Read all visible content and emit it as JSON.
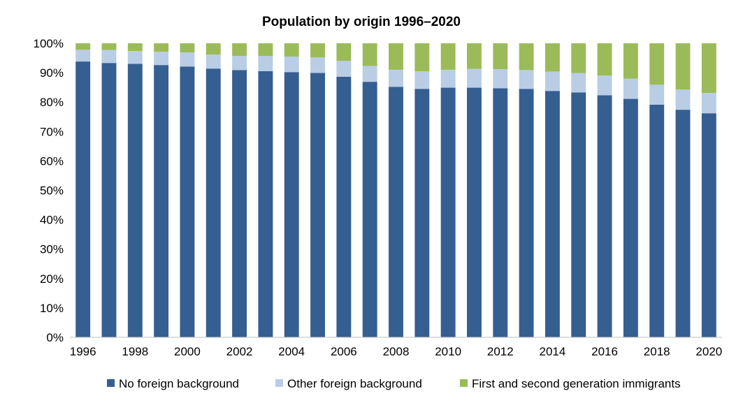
{
  "chart_data": {
    "type": "bar",
    "stacked": true,
    "title": "Population by origin 1996–2020",
    "xlabel": "",
    "ylabel": "",
    "ylim": [
      0,
      100
    ],
    "y_ticks": [
      "0%",
      "10%",
      "20%",
      "30%",
      "40%",
      "50%",
      "60%",
      "70%",
      "80%",
      "90%",
      "100%"
    ],
    "x_tick_labels": [
      "1996",
      "1998",
      "2000",
      "2002",
      "2004",
      "2006",
      "2008",
      "2010",
      "2012",
      "2014",
      "2016",
      "2018",
      "2020"
    ],
    "categories": [
      "1996",
      "1997",
      "1998",
      "1999",
      "2000",
      "2001",
      "2002",
      "2003",
      "2004",
      "2005",
      "2006",
      "2007",
      "2008",
      "2009",
      "2010",
      "2011",
      "2012",
      "2013",
      "2014",
      "2015",
      "2016",
      "2017",
      "2018",
      "2019",
      "2020"
    ],
    "series": [
      {
        "name": "No foreign background",
        "color": "#355e91",
        "values": [
          93.8,
          93.3,
          93.0,
          92.6,
          92.1,
          91.4,
          90.9,
          90.5,
          90.2,
          89.9,
          88.6,
          86.9,
          85.2,
          84.5,
          84.9,
          84.9,
          84.7,
          84.5,
          83.8,
          83.3,
          82.3,
          81.1,
          79.1,
          77.4,
          76.2
        ]
      },
      {
        "name": "Other foreign background",
        "color": "#b9cde5",
        "values": [
          4.0,
          4.4,
          4.4,
          4.5,
          4.8,
          4.8,
          4.8,
          5.2,
          5.3,
          5.3,
          5.4,
          5.4,
          5.8,
          6.0,
          6.1,
          6.4,
          6.5,
          6.4,
          6.6,
          6.6,
          6.7,
          6.9,
          6.8,
          6.9,
          6.9
        ]
      },
      {
        "name": "First and second generation immigrants",
        "color": "#9bbb59",
        "values": [
          2.2,
          2.3,
          2.6,
          2.9,
          3.1,
          3.8,
          4.3,
          4.3,
          4.5,
          4.8,
          6.0,
          7.7,
          9.0,
          9.5,
          9.0,
          8.7,
          8.8,
          9.1,
          9.6,
          10.1,
          11.0,
          12.0,
          14.1,
          15.7,
          16.9
        ]
      }
    ],
    "legend_position": "bottom",
    "grid": false
  }
}
